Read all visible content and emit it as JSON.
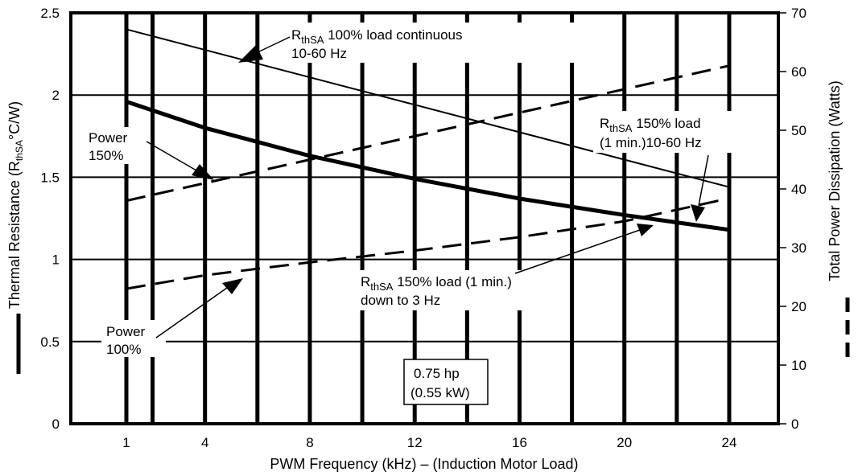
{
  "chart_data": {
    "type": "line",
    "xlabel": "PWM Frequency (kHz) – (Induction Motor Load)",
    "ylabel_left": {
      "main": "Thermal Resistance (R",
      "sub": "thSA",
      "rest": "°C/W)"
    },
    "ylabel_right": "Total Power Dissipation (Watts)",
    "x_ticks": [
      1,
      4,
      8,
      12,
      16,
      20,
      24
    ],
    "xlim": [
      1,
      24
    ],
    "y_left_ticks": [
      "0",
      "0.5",
      "1",
      "1.5",
      "2",
      "2.5"
    ],
    "ylim_left": [
      0,
      2.5
    ],
    "y_right_ticks": [
      "0",
      "10",
      "20",
      "30",
      "40",
      "50",
      "60",
      "70"
    ],
    "ylim_right": [
      0,
      70
    ],
    "grid": true,
    "series": [
      {
        "axis": "left",
        "style": "solid-thin",
        "x": [
          1,
          24
        ],
        "y": [
          2.4,
          1.44
        ]
      },
      {
        "axis": "left",
        "style": "solid-thick",
        "x": [
          1,
          4,
          8,
          12,
          16,
          20,
          24
        ],
        "y": [
          1.96,
          1.8,
          1.63,
          1.49,
          1.37,
          1.27,
          1.18
        ]
      },
      {
        "axis": "right",
        "style": "dashed",
        "x": [
          1,
          24
        ],
        "y": [
          38,
          61
        ]
      },
      {
        "axis": "right",
        "style": "dashed",
        "x": [
          1,
          4,
          8,
          12,
          16,
          20,
          24
        ],
        "y": [
          23,
          25.3,
          27.5,
          29.5,
          31.8,
          34.5,
          38.4
        ]
      }
    ],
    "annotations": [
      {
        "id": "rthsa100",
        "line1": {
          "main": "R",
          "sub": "thSA",
          "rest": " 100%  load   continuous"
        },
        "line2": "10-60 Hz"
      },
      {
        "id": "rthsa150",
        "line1": {
          "main": "R",
          "sub": "thSA",
          "rest": " 150% load"
        },
        "line2": "(1 min.)10-60 Hz"
      },
      {
        "id": "rthsa150down",
        "line1": {
          "main": "R",
          "sub": "thSA",
          "rest": " 150% load (1 min.)"
        },
        "line2": "down to  3  Hz"
      },
      {
        "id": "power150",
        "line1": "Power",
        "line2": "150%"
      },
      {
        "id": "power100",
        "line1": "Power",
        "line2": "100%"
      }
    ],
    "rating_box": {
      "line1": "0.75 hp",
      "line2": "(0.55 kW)"
    }
  }
}
